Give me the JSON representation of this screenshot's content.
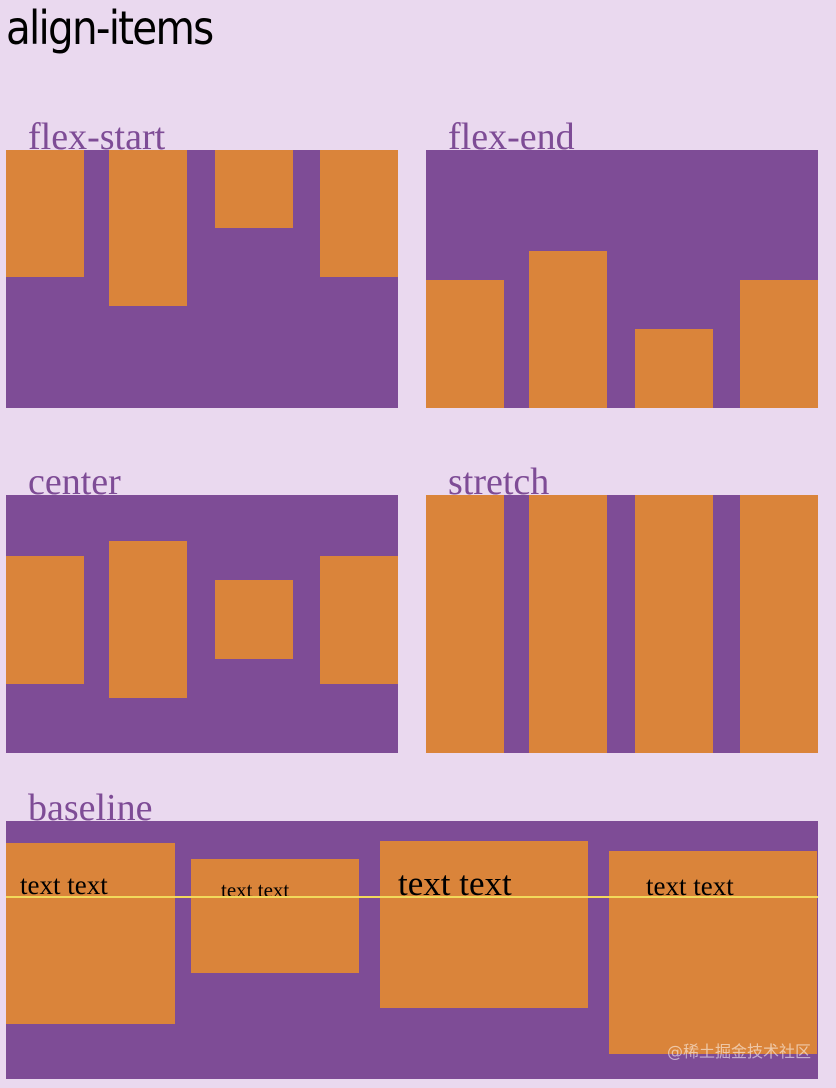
{
  "title": "align-items",
  "colors": {
    "page_background": "#ead9ef",
    "container": "#7e4c96",
    "item": "#da843a",
    "label": "#7e4c96",
    "baseline_line": "#f2d95b"
  },
  "demos": {
    "flex_start": {
      "label": "flex-start"
    },
    "flex_end": {
      "label": "flex-end"
    },
    "center": {
      "label": "center"
    },
    "stretch": {
      "label": "stretch"
    },
    "baseline": {
      "label": "baseline",
      "items": [
        {
          "text": "text text"
        },
        {
          "text": "text text"
        },
        {
          "text": "text text"
        },
        {
          "text": "text text"
        }
      ]
    }
  },
  "watermark": "@稀土掘金技术社区"
}
